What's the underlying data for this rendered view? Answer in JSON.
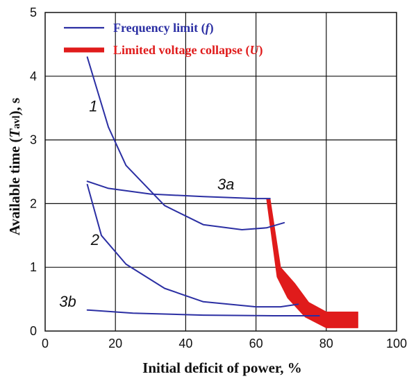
{
  "chart_data": {
    "type": "line",
    "xlabel": "Initial deficit of power, %",
    "ylabel_parts": [
      "Available time (",
      "T",
      "avl",
      "), s"
    ],
    "xlim": [
      0,
      100
    ],
    "ylim": [
      0,
      5
    ],
    "x_ticks": [
      "0",
      "20",
      "40",
      "60",
      "80",
      "100"
    ],
    "y_ticks": [
      "0",
      "1",
      "2",
      "3",
      "4",
      "5"
    ],
    "grid": true,
    "legend_position": "top-left",
    "legend": [
      {
        "text_main": "Frequency limit (",
        "text_var": "f",
        "text_end": ")",
        "color": "#2b2fa3"
      },
      {
        "text_main": "Limited voltage collapse (",
        "text_var": "U",
        "text_end": ")",
        "color": "#e01b1b"
      }
    ],
    "series": [
      {
        "name": "1",
        "color": "#2b2fa3",
        "points": [
          [
            12,
            4.3
          ],
          [
            18,
            3.2
          ],
          [
            23,
            2.6
          ],
          [
            34,
            1.97
          ],
          [
            45,
            1.67
          ],
          [
            56,
            1.59
          ],
          [
            63,
            1.62
          ],
          [
            68,
            1.7
          ]
        ]
      },
      {
        "name": "3a",
        "color": "#2b2fa3",
        "points": [
          [
            12,
            2.35
          ],
          [
            18,
            2.24
          ],
          [
            30,
            2.15
          ],
          [
            45,
            2.11
          ],
          [
            60,
            2.08
          ],
          [
            64,
            2.08
          ]
        ]
      },
      {
        "name": "2",
        "color": "#2b2fa3",
        "points": [
          [
            12,
            2.3
          ],
          [
            16,
            1.5
          ],
          [
            23,
            1.05
          ],
          [
            34,
            0.67
          ],
          [
            45,
            0.46
          ],
          [
            60,
            0.38
          ],
          [
            67,
            0.38
          ],
          [
            72,
            0.42
          ]
        ]
      },
      {
        "name": "3b",
        "color": "#2b2fa3",
        "points": [
          [
            12,
            0.33
          ],
          [
            25,
            0.28
          ],
          [
            45,
            0.25
          ],
          [
            65,
            0.24
          ],
          [
            78,
            0.24
          ]
        ]
      }
    ],
    "voltage_collapse_band": {
      "color": "#e01b1b",
      "upper": [
        [
          64,
          2.08
        ],
        [
          67,
          1.0
        ],
        [
          71,
          0.75
        ],
        [
          75,
          0.45
        ],
        [
          80,
          0.3
        ],
        [
          89,
          0.3
        ]
      ],
      "lower": [
        [
          89,
          0.05
        ],
        [
          80,
          0.05
        ],
        [
          74,
          0.22
        ],
        [
          69,
          0.52
        ],
        [
          66,
          0.85
        ],
        [
          63,
          2.08
        ]
      ]
    },
    "curve_labels": [
      {
        "text": "1",
        "x": 12.5,
        "y": 3.45
      },
      {
        "text": "3a",
        "x": 49,
        "y": 2.22
      },
      {
        "text": "2",
        "x": 13,
        "y": 1.35
      },
      {
        "text": "3b",
        "x": 4,
        "y": 0.38
      }
    ]
  }
}
